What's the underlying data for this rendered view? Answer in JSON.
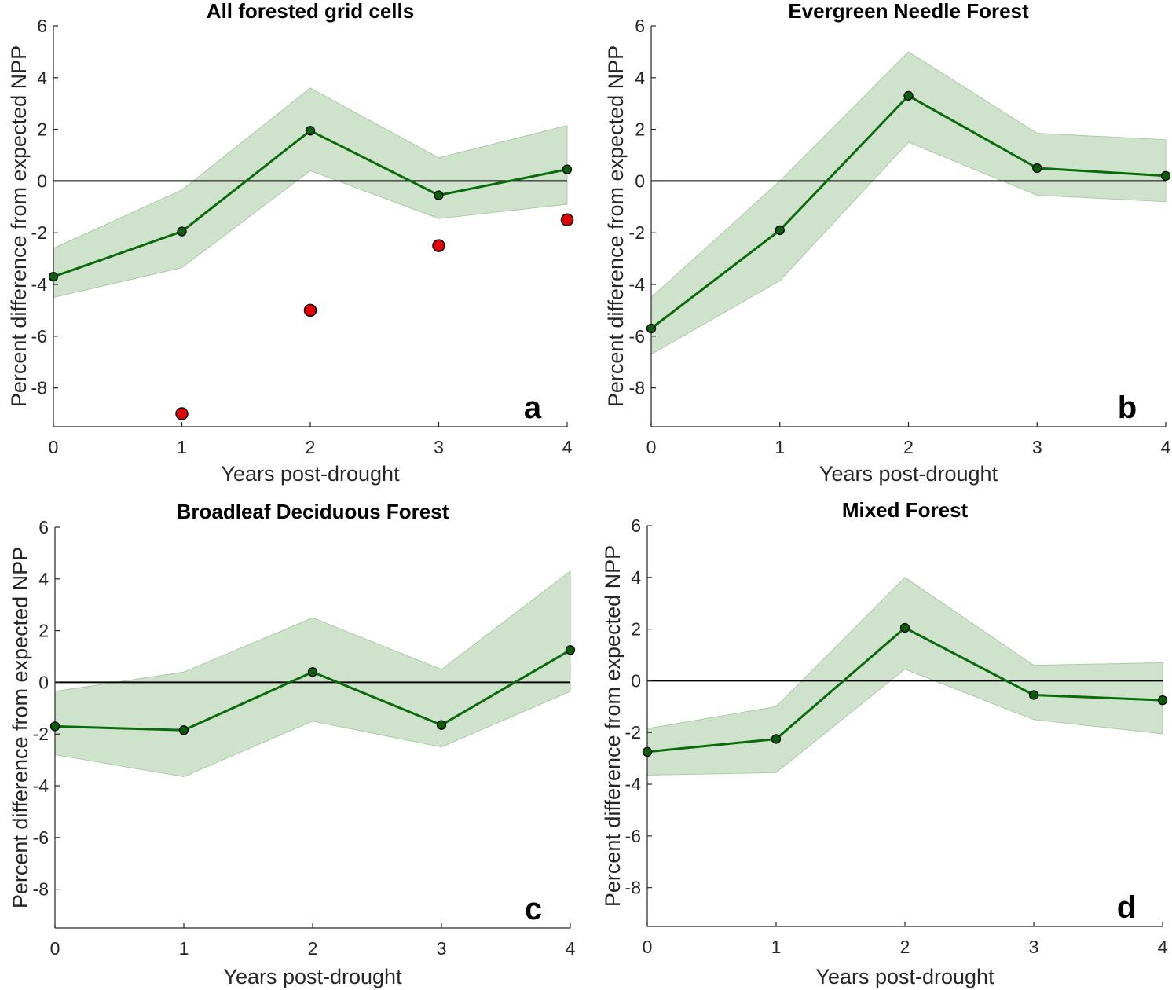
{
  "colors": {
    "band_fill": "#cfe3cc",
    "band_edge": "#a9cca5",
    "line": "#0a6b0a",
    "marker_face": "#0b5f0b",
    "red_marker": "#e00000",
    "zero_line": "#000000"
  },
  "chart_data": [
    {
      "type": "line",
      "panel_letter": "a",
      "title": "All forested grid cells",
      "xlabel": "Years post-drought",
      "ylabel": "Percent difference from expected NPP",
      "xlim": [
        0,
        4
      ],
      "ylim": [
        -9.5,
        6
      ],
      "xticks": [
        "0",
        "1",
        "2",
        "3",
        "4"
      ],
      "yticks": [
        "6",
        "4",
        "2",
        "0",
        "-2",
        "-4",
        "-6",
        "-8"
      ],
      "x": [
        0,
        1,
        2,
        3,
        4
      ],
      "mean": [
        -3.7,
        -1.95,
        1.95,
        -0.55,
        0.45
      ],
      "upper": [
        -2.6,
        -0.35,
        3.6,
        0.9,
        2.15
      ],
      "lower": [
        -4.5,
        -3.35,
        0.4,
        -1.45,
        -0.9
      ],
      "red_points": [
        {
          "x": 1,
          "y": -9.0
        },
        {
          "x": 2,
          "y": -5.0
        },
        {
          "x": 3,
          "y": -2.5
        },
        {
          "x": 4,
          "y": -1.5
        }
      ]
    },
    {
      "type": "line",
      "panel_letter": "b",
      "title": "Evergreen Needle Forest",
      "xlabel": "Years post-drought",
      "ylabel": "Percent difference from expected NPP",
      "xlim": [
        0,
        4
      ],
      "ylim": [
        -9.5,
        6
      ],
      "xticks": [
        "0",
        "1",
        "2",
        "3",
        "4"
      ],
      "yticks": [
        "6",
        "4",
        "2",
        "0",
        "-2",
        "-4",
        "-6",
        "-8"
      ],
      "x": [
        0,
        1,
        2,
        3,
        4
      ],
      "mean": [
        -5.7,
        -1.9,
        3.3,
        0.5,
        0.2
      ],
      "upper": [
        -4.5,
        0.0,
        5.0,
        1.85,
        1.6
      ],
      "lower": [
        -6.7,
        -3.85,
        1.5,
        -0.55,
        -0.8
      ],
      "red_points": []
    },
    {
      "type": "line",
      "panel_letter": "c",
      "title": "Broadleaf Deciduous Forest",
      "xlabel": "Years post-drought",
      "ylabel": "Percent difference from expected NPP",
      "xlim": [
        0,
        4
      ],
      "ylim": [
        -9.5,
        6
      ],
      "xticks": [
        "0",
        "1",
        "2",
        "3",
        "4"
      ],
      "yticks": [
        "6",
        "4",
        "2",
        "0",
        "-2",
        "-4",
        "-6",
        "-8"
      ],
      "x": [
        0,
        1,
        2,
        3,
        4
      ],
      "mean": [
        -1.7,
        -1.85,
        0.4,
        -1.65,
        1.25
      ],
      "upper": [
        -0.35,
        0.4,
        2.5,
        0.5,
        4.3
      ],
      "lower": [
        -2.8,
        -3.65,
        -1.5,
        -2.5,
        -0.35
      ],
      "red_points": []
    },
    {
      "type": "line",
      "panel_letter": "d",
      "title": "Mixed Forest",
      "xlabel": "Years post-drought",
      "ylabel": "Percent difference from expected NPP",
      "xlim": [
        0,
        4
      ],
      "ylim": [
        -9.5,
        6
      ],
      "xticks": [
        "0",
        "1",
        "2",
        "3",
        "4"
      ],
      "yticks": [
        "6",
        "4",
        "2",
        "0",
        "-2",
        "-4",
        "-6",
        "-8"
      ],
      "x": [
        0,
        1,
        2,
        3,
        4
      ],
      "mean": [
        -2.75,
        -2.25,
        2.05,
        -0.55,
        -0.75
      ],
      "upper": [
        -1.85,
        -1.0,
        4.0,
        0.6,
        0.7
      ],
      "lower": [
        -3.65,
        -3.55,
        0.45,
        -1.5,
        -2.05
      ],
      "red_points": []
    }
  ]
}
